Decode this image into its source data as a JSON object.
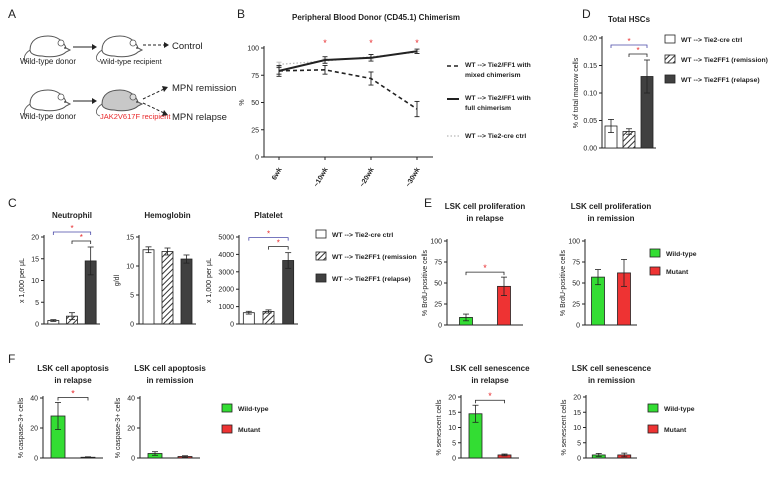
{
  "colors": {
    "ink": "#222222",
    "sig": "#e8282b",
    "dark": "#404040",
    "green": "#33dd33",
    "red": "#ee3333",
    "bracket_blue": "#4a4aa8"
  },
  "panel_letters": [
    "A",
    "B",
    "C",
    "D",
    "E",
    "F",
    "G"
  ],
  "panel_a": {
    "donor1": "Wild-type donor",
    "recipient1": "Wild-type recipient",
    "outcome1": "Control",
    "donor2": "Wild-type donor",
    "recipient2": "JAK2V617F recipient",
    "outcome2": "MPN remission",
    "outcome3": "MPN relapse"
  },
  "chart_data": [
    {
      "id": "B",
      "type": "line",
      "title": "Peripheral Blood Donor (CD45.1) Chimerism",
      "ylabel": "%",
      "xlabel": "",
      "categories": [
        "6wk",
        "~10wk",
        "~20wk",
        "~30wk"
      ],
      "ylim": [
        0,
        100
      ],
      "yticks": [
        0,
        25,
        50,
        75,
        100
      ],
      "series": [
        {
          "name": "WT --> Tie2/FF1 with mixed chimerism",
          "style": "dashed",
          "values": [
            79,
            80,
            72,
            44
          ],
          "errors": [
            5,
            4,
            6,
            7
          ]
        },
        {
          "name": "WT --> Tie2/FF1 with full chimerism",
          "style": "solid",
          "values": [
            79,
            89,
            91,
            97
          ],
          "errors": [
            3,
            3,
            3,
            2
          ]
        },
        {
          "name": "WT --> Tie2-cre ctrl",
          "style": "dotted",
          "values": [
            85,
            88,
            92,
            96
          ],
          "errors": [
            2,
            2,
            2,
            1
          ]
        }
      ],
      "significance": [
        "",
        "*",
        "*",
        "*"
      ],
      "legend": "right"
    },
    {
      "id": "D",
      "type": "bar",
      "title": "Total HSCs",
      "ylabel": "% of total marrow cells",
      "categories": [
        "WT --> Tie2-cre ctrl",
        "WT --> Tie2FF1 (remission)",
        "WT --> Tie2FF1 (relapse)"
      ],
      "values": [
        0.04,
        0.03,
        0.13
      ],
      "errors": [
        0.012,
        0.005,
        0.03
      ],
      "ylim": [
        0,
        0.2
      ],
      "yticks": [
        "0.00",
        "0.05",
        "0.10",
        "0.15",
        "0.20"
      ],
      "brackets": [
        "*",
        "*"
      ],
      "legend": [
        "WT --> Tie2-cre ctrl",
        "WT --> Tie2FF1 (remission)",
        "WT --> Tie2FF1 (relapse)"
      ]
    },
    {
      "id": "C1",
      "type": "bar",
      "title": "Neutrophil",
      "ylabel": "x 1,000 per μL",
      "categories": [
        "WT --> Tie2-cre ctrl",
        "WT --> Tie2FF1 (remission)",
        "WT --> Tie2FF1 (relapse)"
      ],
      "values": [
        0.8,
        1.8,
        14.5
      ],
      "errors": [
        0.2,
        0.8,
        3.2
      ],
      "ylim": [
        0,
        20
      ],
      "yticks": [
        "0",
        "5",
        "10",
        "15",
        "20"
      ],
      "brackets": [
        "*",
        "*"
      ]
    },
    {
      "id": "C2",
      "type": "bar",
      "title": "Hemoglobin",
      "ylabel": "g/dl",
      "categories": [
        "WT --> Tie2-cre ctrl",
        "WT --> Tie2FF1 (remission)",
        "WT --> Tie2FF1 (relapse)"
      ],
      "values": [
        12.8,
        12.5,
        11.2
      ],
      "errors": [
        0.5,
        0.6,
        0.7
      ],
      "ylim": [
        0,
        15
      ],
      "yticks": [
        "0",
        "5",
        "10",
        "15"
      ],
      "brackets": []
    },
    {
      "id": "C3",
      "type": "bar",
      "title": "Platelet",
      "ylabel": "x 1,000 per μL",
      "categories": [
        "WT --> Tie2-cre ctrl",
        "WT --> Tie2FF1 (remission)",
        "WT --> Tie2FF1 (relapse)"
      ],
      "values": [
        650,
        720,
        3650
      ],
      "errors": [
        80,
        90,
        450
      ],
      "ylim": [
        0,
        5000
      ],
      "yticks": [
        "0",
        "1000",
        "2000",
        "3000",
        "4000",
        "5000"
      ],
      "brackets": [
        "*",
        "*"
      ],
      "legend": [
        "WT --> Tie2-cre ctrl",
        "WT --> Tie2FF1 (remission",
        "WT --> Tie2FF1 (relapse)"
      ]
    },
    {
      "id": "E1",
      "type": "bar",
      "title": "LSK cell proliferation in relapse",
      "ylabel": "% BrdU-positive cells",
      "categories": [
        "Wild-type",
        "Mutant"
      ],
      "values": [
        9,
        46
      ],
      "errors": [
        4,
        11
      ],
      "ylim": [
        0,
        100
      ],
      "yticks": [
        "0",
        "25",
        "50",
        "75",
        "100"
      ],
      "brackets": [
        "*"
      ]
    },
    {
      "id": "E2",
      "type": "bar",
      "title": "LSK cell proliferation in remission",
      "ylabel": "% BrdU-positive cells",
      "categories": [
        "Wild-type",
        "Mutant"
      ],
      "values": [
        57,
        62
      ],
      "errors": [
        9,
        16
      ],
      "ylim": [
        0,
        100
      ],
      "yticks": [
        "0",
        "25",
        "50",
        "75",
        "100"
      ],
      "brackets": [],
      "legend": [
        "Wild-type",
        "Mutant"
      ]
    },
    {
      "id": "F1",
      "type": "bar",
      "title": "LSK cell apoptosis in relapse",
      "ylabel": "% caspase-3+ cells",
      "categories": [
        "Wild-type",
        "Mutant"
      ],
      "values": [
        28,
        0.5
      ],
      "errors": [
        9,
        0.3
      ],
      "ylim": [
        0,
        40
      ],
      "yticks": [
        "0",
        "20",
        "40"
      ],
      "brackets": [
        "*"
      ]
    },
    {
      "id": "F2",
      "type": "bar",
      "title": "LSK cell apoptosis in remission",
      "ylabel": "% caspase-3+ cells",
      "categories": [
        "Wild-type",
        "Mutant"
      ],
      "values": [
        3,
        1
      ],
      "errors": [
        1.2,
        0.5
      ],
      "ylim": [
        0,
        40
      ],
      "yticks": [
        "0",
        "20",
        "40"
      ],
      "brackets": [],
      "legend": [
        "Wild-type",
        "Mutant"
      ]
    },
    {
      "id": "G1",
      "type": "bar",
      "title": "LSK cell senescence in relapse",
      "ylabel": "% senescent cells",
      "categories": [
        "Wild-type",
        "Mutant"
      ],
      "values": [
        14.5,
        1
      ],
      "errors": [
        2.8,
        0.3
      ],
      "ylim": [
        0,
        20
      ],
      "yticks": [
        "0",
        "5",
        "10",
        "15",
        "20"
      ],
      "brackets": [
        "*"
      ]
    },
    {
      "id": "G2",
      "type": "bar",
      "title": "LSK cell senescence in remission",
      "ylabel": "% senescent cells",
      "categories": [
        "Wild-type",
        "Mutant"
      ],
      "values": [
        1,
        1
      ],
      "errors": [
        0.5,
        0.6
      ],
      "ylim": [
        0,
        20
      ],
      "yticks": [
        "0",
        "5",
        "10",
        "15",
        "20"
      ],
      "brackets": [],
      "legend": [
        "Wild-type",
        "Mutant"
      ]
    }
  ]
}
